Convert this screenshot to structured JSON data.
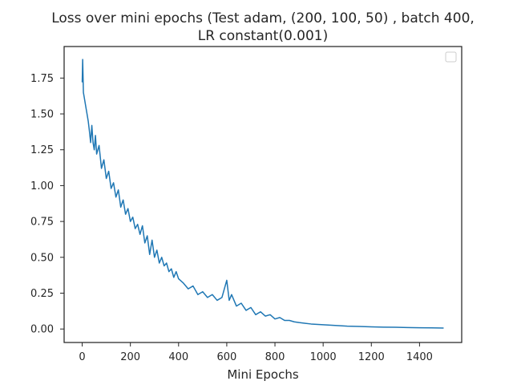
{
  "chart_data": {
    "type": "line",
    "title_line1": "Loss over mini epochs (Test adam, (200, 100, 50) , batch 400,",
    "title_line2": "LR constant(0.001)",
    "xlabel": "Mini Epochs",
    "ylabel": "",
    "xlim": [
      -75,
      1575
    ],
    "ylim": [
      -0.094,
      1.97
    ],
    "x_ticks": [
      0,
      200,
      400,
      600,
      800,
      1000,
      1200,
      1400
    ],
    "x_tick_labels": [
      "0",
      "200",
      "400",
      "600",
      "800",
      "1000",
      "1200",
      "1400"
    ],
    "y_ticks": [
      0.0,
      0.25,
      0.5,
      0.75,
      1.0,
      1.25,
      1.5,
      1.75
    ],
    "y_tick_labels": [
      "0.00",
      "0.25",
      "0.50",
      "0.75",
      "1.00",
      "1.25",
      "1.50",
      "1.75"
    ],
    "grid": false,
    "legend": "top-right (empty)",
    "line_color": "#1f77b4",
    "series": [
      {
        "x": [
          0,
          2,
          5,
          10,
          15,
          20,
          25,
          30,
          35,
          40,
          45,
          50,
          55,
          60,
          70,
          80,
          90,
          100,
          110,
          120,
          130,
          140,
          150,
          160,
          170,
          180,
          190,
          200,
          210,
          220,
          230,
          240,
          250,
          260,
          270,
          280,
          290,
          300,
          310,
          320,
          330,
          340,
          350,
          360,
          370,
          380,
          390,
          400,
          420,
          440,
          460,
          480,
          500,
          520,
          540,
          560,
          580,
          600,
          610,
          620,
          640,
          660,
          680,
          700,
          720,
          740,
          760,
          780,
          800,
          820,
          840,
          860,
          880,
          900,
          950,
          1000,
          1050,
          1100,
          1150,
          1200,
          1250,
          1300,
          1350,
          1400,
          1450,
          1500
        ],
        "values": [
          1.72,
          1.88,
          1.65,
          1.6,
          1.55,
          1.5,
          1.45,
          1.38,
          1.3,
          1.42,
          1.3,
          1.25,
          1.35,
          1.22,
          1.28,
          1.12,
          1.18,
          1.05,
          1.1,
          0.98,
          1.02,
          0.92,
          0.97,
          0.85,
          0.9,
          0.8,
          0.84,
          0.75,
          0.78,
          0.7,
          0.73,
          0.66,
          0.72,
          0.6,
          0.65,
          0.52,
          0.62,
          0.5,
          0.55,
          0.46,
          0.5,
          0.44,
          0.46,
          0.4,
          0.42,
          0.36,
          0.4,
          0.35,
          0.32,
          0.28,
          0.3,
          0.24,
          0.26,
          0.22,
          0.24,
          0.2,
          0.22,
          0.34,
          0.2,
          0.24,
          0.16,
          0.18,
          0.13,
          0.15,
          0.1,
          0.12,
          0.09,
          0.1,
          0.07,
          0.08,
          0.06,
          0.06,
          0.05,
          0.045,
          0.035,
          0.03,
          0.025,
          0.02,
          0.018,
          0.015,
          0.013,
          0.012,
          0.01,
          0.009,
          0.008,
          0.007
        ]
      }
    ]
  }
}
